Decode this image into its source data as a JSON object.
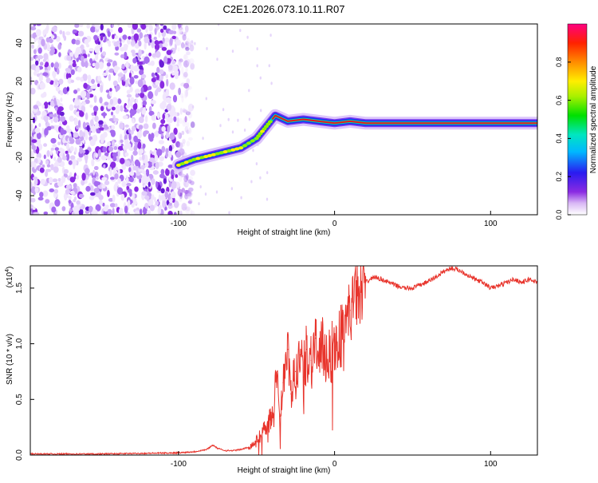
{
  "title": "C2E1.2026.073.10.11.R07",
  "chart_data": [
    {
      "type": "heatmap",
      "name": "spectrogram",
      "xlabel": "Height of straight line (km)",
      "ylabel": "Frequency (Hz)",
      "xlim": [
        -195,
        130
      ],
      "ylim": [
        -50,
        50
      ],
      "xticks": [
        -100,
        0,
        100
      ],
      "xtick_labels": [
        "-100",
        "0",
        "100"
      ],
      "yticks": [
        -40,
        -20,
        0,
        20,
        40
      ],
      "ytick_labels": [
        "-40",
        "-20",
        "0",
        "20",
        "40"
      ],
      "noise_region_x": [
        -195,
        -100
      ],
      "signal_track": {
        "x": [
          -100,
          -90,
          -80,
          -70,
          -60,
          -50,
          -45,
          -40,
          -38,
          -30,
          -20,
          -10,
          0,
          10,
          20,
          40,
          60,
          80,
          100,
          130
        ],
        "y": [
          -24,
          -21,
          -19,
          -17,
          -15,
          -10,
          -5,
          0,
          2,
          -1,
          0,
          -1,
          -2,
          -1,
          -2,
          -2,
          -2,
          -2,
          -2,
          -2
        ]
      },
      "colorbar": {
        "label": "Normalized spectral amplitude",
        "range": [
          0,
          1
        ],
        "ticks": [
          0.0,
          0.2,
          0.4,
          0.6,
          0.8
        ],
        "tick_labels": [
          "0.0",
          "0.2",
          "0.4",
          "0.6",
          "0.8"
        ]
      }
    },
    {
      "type": "line",
      "name": "snr",
      "xlabel": "Height of straight line (km)",
      "ylabel": "SNR (10 * v/v)",
      "scale_label": "(x10",
      "scale_exponent": "4",
      "scale_close": ")",
      "xlim": [
        -195,
        130
      ],
      "ylim": [
        0,
        1.7
      ],
      "xticks": [
        -100,
        0,
        100
      ],
      "xtick_labels": [
        "-100",
        "0",
        "100"
      ],
      "yticks": [
        0.0,
        0.5,
        1.0,
        1.5
      ],
      "ytick_labels": [
        "0.0",
        "0.5",
        "1.0",
        "1.5"
      ],
      "color": "#e8342c",
      "series": [
        {
          "name": "SNR",
          "x": [
            -195,
            -150,
            -100,
            -90,
            -82,
            -78,
            -75,
            -70,
            -65,
            -60,
            -55,
            -50,
            -45,
            -40,
            -37,
            -35,
            -33,
            -30,
            -28,
            -25,
            -22,
            -20,
            -18,
            -15,
            -12,
            -10,
            -8,
            -5,
            0,
            5,
            10,
            15,
            20,
            25,
            30,
            35,
            40,
            45,
            50,
            55,
            60,
            65,
            70,
            75,
            80,
            85,
            90,
            95,
            100,
            105,
            110,
            115,
            120,
            125,
            130
          ],
          "y": [
            0.01,
            0.01,
            0.02,
            0.03,
            0.05,
            0.09,
            0.06,
            0.04,
            0.04,
            0.05,
            0.07,
            0.12,
            0.25,
            0.35,
            0.75,
            0.35,
            0.65,
            0.95,
            0.55,
            0.75,
            0.9,
            0.7,
            0.95,
            0.85,
            1.05,
            0.8,
            0.95,
            0.9,
            0.95,
            1.1,
            1.3,
            1.45,
            1.55,
            1.6,
            1.58,
            1.55,
            1.52,
            1.5,
            1.5,
            1.53,
            1.56,
            1.6,
            1.65,
            1.68,
            1.66,
            1.62,
            1.58,
            1.55,
            1.5,
            1.52,
            1.55,
            1.58,
            1.55,
            1.58,
            1.55
          ]
        }
      ]
    }
  ]
}
